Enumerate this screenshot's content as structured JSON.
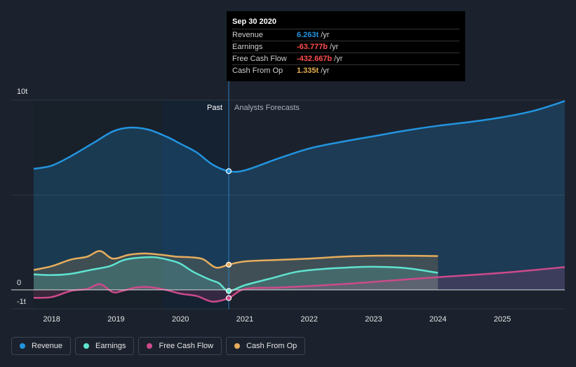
{
  "tooltip": {
    "date": "Sep 30 2020",
    "rows": [
      {
        "label": "Revenue",
        "value": "6.263t",
        "unit": "/yr",
        "color": "#2394df"
      },
      {
        "label": "Earnings",
        "value": "-63.777b",
        "unit": "/yr",
        "color": "#ff4d4d"
      },
      {
        "label": "Free Cash Flow",
        "value": "-432.667b",
        "unit": "/yr",
        "color": "#ff4d4d"
      },
      {
        "label": "Cash From Op",
        "value": "1.335t",
        "unit": "/yr",
        "color": "#e9b24e"
      }
    ]
  },
  "legend": [
    {
      "label": "Revenue",
      "color": "#2394df"
    },
    {
      "label": "Earnings",
      "color": "#5fe3d0"
    },
    {
      "label": "Free Cash Flow",
      "color": "#cc4a8b"
    },
    {
      "label": "Cash From Op",
      "color": "#e6ad5d"
    }
  ],
  "chart_data": {
    "type": "area",
    "period_labels": {
      "past": "Past",
      "forecast": "Analysts Forecasts"
    },
    "y_tick_labels": [
      "10t",
      "0",
      "-1t"
    ],
    "y_ticks": [
      10,
      0,
      -1
    ],
    "ylim": [
      -1,
      10
    ],
    "xlim": [
      2017.72,
      2025.97
    ],
    "x_ticks": [
      2018,
      2019,
      2020,
      2021,
      2022,
      2023,
      2024,
      2025
    ],
    "x_tick_labels": [
      "2018",
      "2019",
      "2020",
      "2021",
      "2022",
      "2023",
      "2024",
      "2025"
    ],
    "divider_x": 2020.75,
    "highlight_x": [
      2019.72,
      2020.75
    ],
    "series": [
      {
        "name": "Revenue",
        "color": "#2394df",
        "x": [
          2017.72,
          2018.0,
          2018.3,
          2018.65,
          2018.95,
          2019.2,
          2019.5,
          2019.8,
          2020.0,
          2020.25,
          2020.5,
          2020.75,
          2021.0,
          2021.5,
          2022.0,
          2022.5,
          2023.0,
          2023.5,
          2024.0,
          2024.5,
          2025.0,
          2025.5,
          2025.97
        ],
        "y": [
          6.38,
          6.55,
          7.05,
          7.75,
          8.35,
          8.55,
          8.45,
          8.05,
          7.7,
          7.25,
          6.6,
          6.26,
          6.3,
          6.9,
          7.45,
          7.8,
          8.1,
          8.4,
          8.65,
          8.85,
          9.1,
          9.45,
          9.95
        ]
      },
      {
        "name": "Earnings",
        "color": "#5fe3d0",
        "x": [
          2017.72,
          2018.0,
          2018.3,
          2018.6,
          2018.9,
          2019.1,
          2019.3,
          2019.6,
          2019.85,
          2020.0,
          2020.2,
          2020.45,
          2020.6,
          2020.75,
          2021.0,
          2021.4,
          2021.8,
          2022.2,
          2022.6,
          2023.0,
          2023.5,
          2024.0
        ],
        "y": [
          0.82,
          0.78,
          0.85,
          1.05,
          1.25,
          1.55,
          1.68,
          1.72,
          1.55,
          1.38,
          0.95,
          0.55,
          0.35,
          -0.06,
          0.25,
          0.6,
          0.95,
          1.1,
          1.18,
          1.22,
          1.15,
          0.9
        ]
      },
      {
        "name": "Free Cash Flow",
        "color": "#cc4a8b",
        "x": [
          2017.72,
          2018.0,
          2018.3,
          2018.55,
          2018.75,
          2018.95,
          2019.1,
          2019.3,
          2019.5,
          2019.75,
          2020.0,
          2020.25,
          2020.5,
          2020.75,
          2021.0,
          2021.5,
          2022.0,
          2022.5,
          2023.0,
          2023.5,
          2024.0,
          2024.5,
          2025.0,
          2025.5,
          2025.97
        ],
        "y": [
          -0.42,
          -0.38,
          -0.05,
          0.05,
          0.3,
          -0.12,
          -0.05,
          0.12,
          0.15,
          0.02,
          -0.2,
          -0.32,
          -0.62,
          -0.43,
          0.05,
          0.12,
          0.2,
          0.3,
          0.42,
          0.55,
          0.67,
          0.78,
          0.9,
          1.05,
          1.2
        ]
      },
      {
        "name": "Cash From Op",
        "color": "#e6ad5d",
        "x": [
          2017.72,
          2018.0,
          2018.3,
          2018.55,
          2018.75,
          2018.95,
          2019.2,
          2019.45,
          2019.7,
          2019.95,
          2020.15,
          2020.35,
          2020.55,
          2020.75,
          2021.0,
          2021.5,
          2022.0,
          2022.5,
          2023.0,
          2023.5,
          2024.0
        ],
        "y": [
          1.05,
          1.25,
          1.6,
          1.75,
          2.05,
          1.65,
          1.85,
          1.92,
          1.85,
          1.75,
          1.72,
          1.62,
          1.18,
          1.33,
          1.5,
          1.58,
          1.65,
          1.75,
          1.8,
          1.8,
          1.78
        ]
      }
    ],
    "markers": [
      {
        "series": "Revenue",
        "x": 2020.75,
        "y": 6.26
      },
      {
        "series": "Cash From Op",
        "x": 2020.75,
        "y": 1.33
      },
      {
        "series": "Earnings",
        "x": 2020.75,
        "y": -0.06
      },
      {
        "series": "Free Cash Flow",
        "x": 2020.75,
        "y": -0.43
      }
    ]
  }
}
